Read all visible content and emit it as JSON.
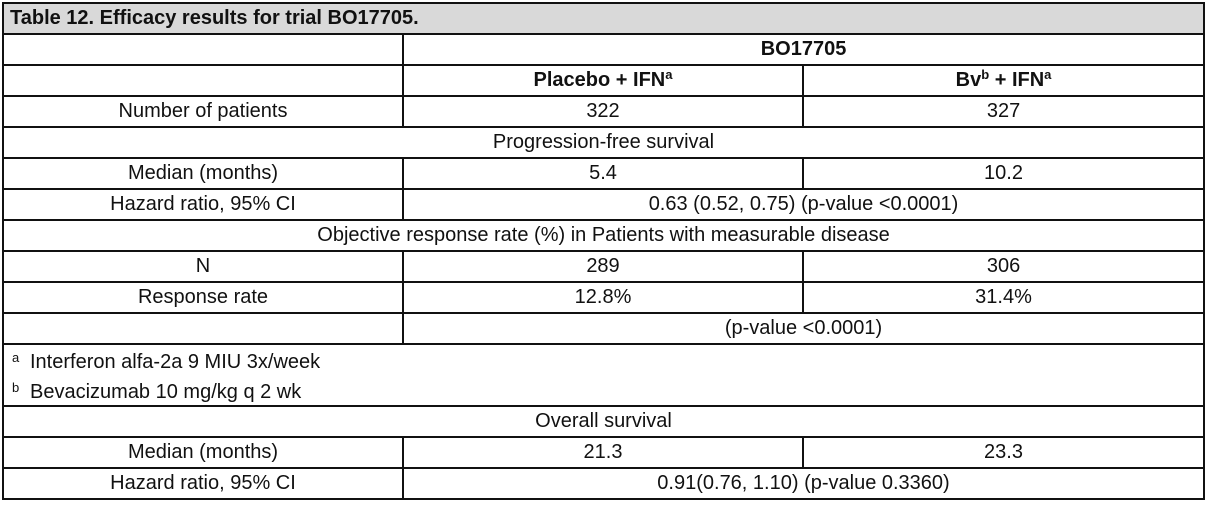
{
  "caption": "Table 12. Efficacy results for trial BO17705.",
  "trial_header": "BO17705",
  "columns": {
    "placebo": {
      "label": "Placebo + IFN",
      "sup": "a"
    },
    "bv": {
      "label_prefix": "Bv",
      "prefix_sup": "b",
      "label_suffix": " + IFN",
      "sup": "a"
    }
  },
  "rows": {
    "patients": {
      "label": "Number of patients",
      "placebo": "322",
      "bv": "327"
    },
    "pfs_section": "Progression-free survival",
    "pfs_median": {
      "label": "Median (months)",
      "placebo": "5.4",
      "bv": "10.2"
    },
    "pfs_hr": {
      "label": "Hazard ratio, 95% CI",
      "value": "0.63 (0.52, 0.75) (p-value <0.0001)"
    },
    "orr_section": "Objective response rate (%) in Patients with measurable disease",
    "orr_n": {
      "label": "N",
      "placebo": "289",
      "bv": "306"
    },
    "orr_rate": {
      "label": "Response rate",
      "placebo": "12.8%",
      "bv": "31.4%"
    },
    "orr_p": {
      "value": "(p-value <0.0001)"
    },
    "os_section": "Overall survival",
    "os_median": {
      "label": "Median (months)",
      "placebo": "21.3",
      "bv": "23.3"
    },
    "os_hr": {
      "label": "Hazard ratio, 95% CI",
      "value": "0.91(0.76, 1.10) (p-value 0.3360)"
    }
  },
  "footnotes": [
    {
      "mark": "a",
      "text": "Interferon alfa-2a 9 MIU 3x/week"
    },
    {
      "mark": "b",
      "text": "Bevacizumab 10 mg/kg q 2 wk"
    }
  ]
}
